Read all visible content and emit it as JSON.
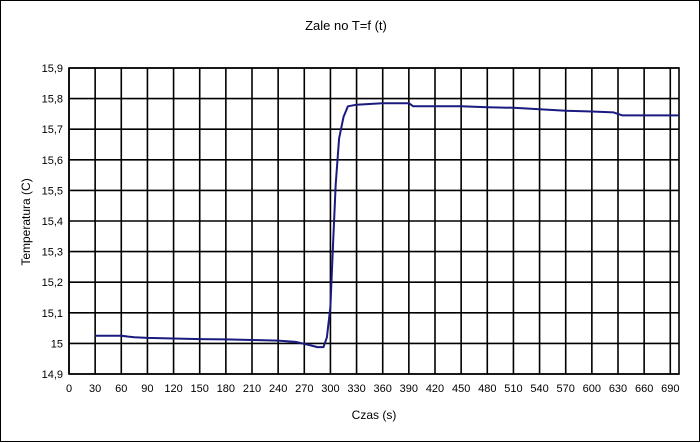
{
  "chart_data": {
    "type": "line",
    "title": "Zale  no     T=f (t)",
    "xlabel": "Czas (s)",
    "ylabel": "Temperatura (C)",
    "xlim": [
      0,
      700
    ],
    "ylim": [
      14.9,
      15.9
    ],
    "x_ticks": [
      0,
      30,
      60,
      90,
      120,
      150,
      180,
      210,
      240,
      270,
      300,
      330,
      360,
      390,
      420,
      450,
      480,
      510,
      540,
      570,
      600,
      630,
      660,
      690
    ],
    "y_ticks": [
      "14,9",
      "15",
      "15,1",
      "15,2",
      "15,3",
      "15,4",
      "15,5",
      "15,6",
      "15,7",
      "15,8",
      "15,9"
    ],
    "grid": true,
    "legend": "none",
    "series": [
      {
        "color": "#1a1a80",
        "x": [
          30,
          60,
          75,
          90,
          120,
          150,
          180,
          210,
          240,
          260,
          275,
          285,
          292,
          296,
          300,
          303,
          306,
          310,
          315,
          320,
          330,
          360,
          390,
          395,
          420,
          450,
          480,
          510,
          540,
          570,
          600,
          625,
          635,
          660,
          690,
          700
        ],
        "y": [
          15.025,
          15.025,
          15.02,
          15.018,
          15.016,
          15.014,
          15.013,
          15.011,
          15.009,
          15.005,
          14.995,
          14.988,
          14.988,
          15.02,
          15.12,
          15.32,
          15.52,
          15.67,
          15.74,
          15.775,
          15.78,
          15.785,
          15.785,
          15.775,
          15.775,
          15.775,
          15.772,
          15.77,
          15.765,
          15.76,
          15.758,
          15.755,
          15.745,
          15.745,
          15.745,
          15.745
        ]
      }
    ]
  }
}
